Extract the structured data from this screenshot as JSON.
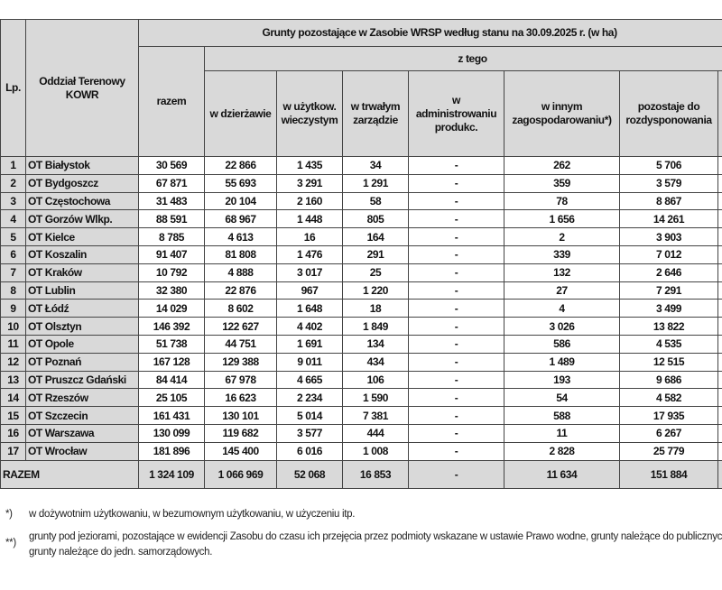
{
  "table": {
    "headers": {
      "lp": "Lp.",
      "branch": "Oddział Terenowy KOWR",
      "group_title": "Grunty pozostające w Zasobie WRSP według stanu na 30.09.2025 r. (w ha)",
      "total": "razem",
      "of_which": "z tego",
      "columns": [
        "w dzierżawie",
        "w użytkow. wieczystym",
        "w trwałym zarządzie",
        "w administrowaniu produkc.",
        "w innym zagospodarowaniu*)",
        "pozostaje do rozdysponowania"
      ]
    },
    "rows": [
      {
        "lp": "1",
        "name": "OT Białystok",
        "razem": "30 569",
        "dzierzawa": "22 866",
        "uzytkow": "1 435",
        "trwaly": "34",
        "admin": "-",
        "inny": "262",
        "pozostaje": "5 706"
      },
      {
        "lp": "2",
        "name": "OT Bydgoszcz",
        "razem": "67 871",
        "dzierzawa": "55 693",
        "uzytkow": "3 291",
        "trwaly": "1 291",
        "admin": "-",
        "inny": "359",
        "pozostaje": "3 579"
      },
      {
        "lp": "3",
        "name": "OT Częstochowa",
        "razem": "31 483",
        "dzierzawa": "20 104",
        "uzytkow": "2 160",
        "trwaly": "58",
        "admin": "-",
        "inny": "78",
        "pozostaje": "8 867"
      },
      {
        "lp": "4",
        "name": "OT Gorzów Wlkp.",
        "razem": "88 591",
        "dzierzawa": "68 967",
        "uzytkow": "1 448",
        "trwaly": "805",
        "admin": "-",
        "inny": "1 656",
        "pozostaje": "14 261"
      },
      {
        "lp": "5",
        "name": "OT Kielce",
        "razem": "8 785",
        "dzierzawa": "4 613",
        "uzytkow": "16",
        "trwaly": "164",
        "admin": "-",
        "inny": "2",
        "pozostaje": "3 903"
      },
      {
        "lp": "6",
        "name": "OT Koszalin",
        "razem": "91 407",
        "dzierzawa": "81 808",
        "uzytkow": "1 476",
        "trwaly": "291",
        "admin": "-",
        "inny": "339",
        "pozostaje": "7 012"
      },
      {
        "lp": "7",
        "name": "OT Kraków",
        "razem": "10 792",
        "dzierzawa": "4 888",
        "uzytkow": "3 017",
        "trwaly": "25",
        "admin": "-",
        "inny": "132",
        "pozostaje": "2 646"
      },
      {
        "lp": "8",
        "name": "OT Lublin",
        "razem": "32 380",
        "dzierzawa": "22 876",
        "uzytkow": "967",
        "trwaly": "1 220",
        "admin": "-",
        "inny": "27",
        "pozostaje": "7 291"
      },
      {
        "lp": "9",
        "name": "OT Łódź",
        "razem": "14 029",
        "dzierzawa": "8 602",
        "uzytkow": "1 648",
        "trwaly": "18",
        "admin": "-",
        "inny": "4",
        "pozostaje": "3 499"
      },
      {
        "lp": "10",
        "name": "OT Olsztyn",
        "razem": "146 392",
        "dzierzawa": "122 627",
        "uzytkow": "4 402",
        "trwaly": "1 849",
        "admin": "-",
        "inny": "3 026",
        "pozostaje": "13 822"
      },
      {
        "lp": "11",
        "name": "OT Opole",
        "razem": "51 738",
        "dzierzawa": "44 751",
        "uzytkow": "1 691",
        "trwaly": "134",
        "admin": "-",
        "inny": "586",
        "pozostaje": "4 535"
      },
      {
        "lp": "12",
        "name": "OT Poznań",
        "razem": "167 128",
        "dzierzawa": "129 388",
        "uzytkow": "9 011",
        "trwaly": "434",
        "admin": "-",
        "inny": "1 489",
        "pozostaje": "12 515"
      },
      {
        "lp": "13",
        "name": "OT Pruszcz Gdański",
        "razem": "84 414",
        "dzierzawa": "67 978",
        "uzytkow": "4 665",
        "trwaly": "106",
        "admin": "-",
        "inny": "193",
        "pozostaje": "9 686"
      },
      {
        "lp": "14",
        "name": "OT Rzeszów",
        "razem": "25 105",
        "dzierzawa": "16 623",
        "uzytkow": "2 234",
        "trwaly": "1 590",
        "admin": "-",
        "inny": "54",
        "pozostaje": "4 582"
      },
      {
        "lp": "15",
        "name": "OT Szczecin",
        "razem": "161 431",
        "dzierzawa": "130 101",
        "uzytkow": "5 014",
        "trwaly": "7 381",
        "admin": "-",
        "inny": "588",
        "pozostaje": "17 935"
      },
      {
        "lp": "16",
        "name": "OT Warszawa",
        "razem": "130 099",
        "dzierzawa": "119 682",
        "uzytkow": "3 577",
        "trwaly": "444",
        "admin": "-",
        "inny": "11",
        "pozostaje": "6 267"
      },
      {
        "lp": "17",
        "name": "OT Wrocław",
        "razem": "181 896",
        "dzierzawa": "145 400",
        "uzytkow": "6 016",
        "trwaly": "1 008",
        "admin": "-",
        "inny": "2 828",
        "pozostaje": "25 779"
      }
    ],
    "total": {
      "name": "RAZEM",
      "razem": "1 324 109",
      "dzierzawa": "1 066 969",
      "uzytkow": "52 068",
      "trwaly": "16 853",
      "admin": "-",
      "inny": "11 634",
      "pozostaje": "151 884"
    }
  },
  "footnotes": [
    {
      "mark": "*)",
      "text": "w dożywotnim użytkowaniu, w bezumownym użytkowaniu, w użyczeniu itp."
    },
    {
      "mark": "**)",
      "text": "grunty pod jeziorami, pozostające w ewidencji Zasobu do czasu ich przejęcia przez podmioty wskazane w ustawie Prawo wodne, grunty należące do publicznych, grunty należące do jedn. samorządowych."
    }
  ]
}
